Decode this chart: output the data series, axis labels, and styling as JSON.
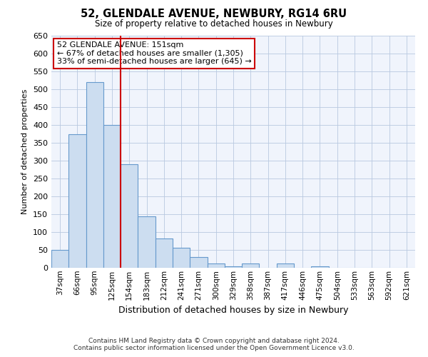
{
  "title": "52, GLENDALE AVENUE, NEWBURY, RG14 6RU",
  "subtitle": "Size of property relative to detached houses in Newbury",
  "xlabel": "Distribution of detached houses by size in Newbury",
  "ylabel": "Number of detached properties",
  "categories": [
    "37sqm",
    "66sqm",
    "95sqm",
    "125sqm",
    "154sqm",
    "183sqm",
    "212sqm",
    "241sqm",
    "271sqm",
    "300sqm",
    "329sqm",
    "358sqm",
    "387sqm",
    "417sqm",
    "446sqm",
    "475sqm",
    "504sqm",
    "533sqm",
    "563sqm",
    "592sqm",
    "621sqm"
  ],
  "values": [
    50,
    375,
    520,
    400,
    290,
    145,
    82,
    57,
    30,
    12,
    5,
    12,
    1,
    12,
    1,
    5,
    1,
    0,
    0,
    0,
    0
  ],
  "bar_color": "#ccddf0",
  "bar_edge_color": "#6699cc",
  "vline_color": "#cc0000",
  "vline_index": 4,
  "ylim": [
    0,
    650
  ],
  "yticks": [
    0,
    50,
    100,
    150,
    200,
    250,
    300,
    350,
    400,
    450,
    500,
    550,
    600,
    650
  ],
  "annotation_title": "52 GLENDALE AVENUE: 151sqm",
  "annotation_line1": "← 67% of detached houses are smaller (1,305)",
  "annotation_line2": "33% of semi-detached houses are larger (645) →",
  "annotation_box_color": "#cc0000",
  "footer_line1": "Contains HM Land Registry data © Crown copyright and database right 2024.",
  "footer_line2": "Contains public sector information licensed under the Open Government Licence v3.0.",
  "background_color": "#ffffff",
  "plot_bg_color": "#f0f4fc",
  "grid_color": "#b8c8e0"
}
